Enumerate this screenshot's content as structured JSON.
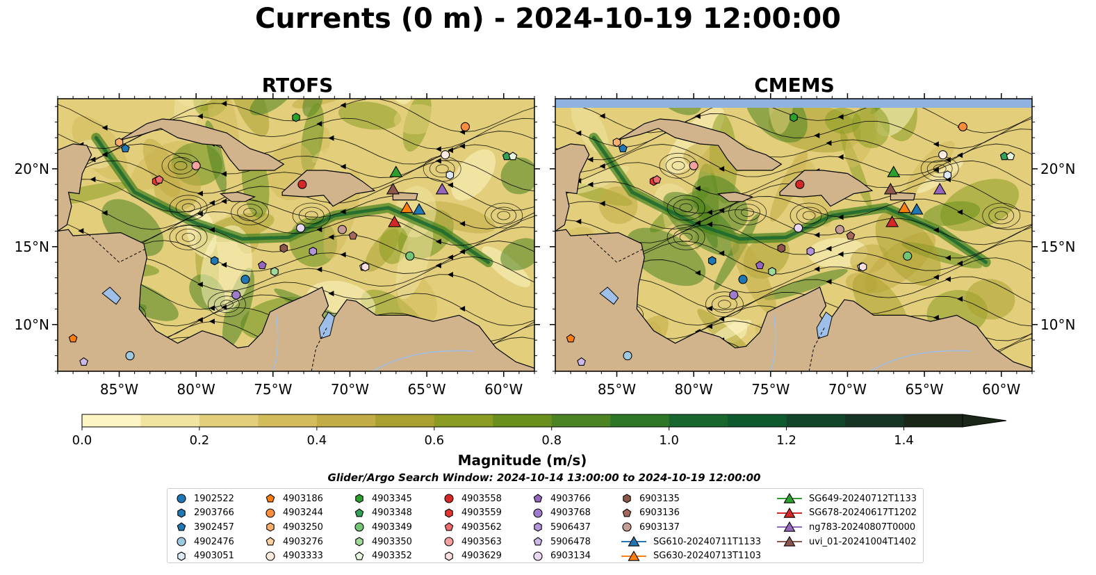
{
  "title": "Currents (0 m) - 2024-10-19 12:00:00",
  "panels": [
    {
      "id": "rtofs",
      "title": "RTOFS"
    },
    {
      "id": "cmems",
      "title": "CMEMS"
    }
  ],
  "map": {
    "lon_range": [
      -89,
      -58
    ],
    "lat_range": [
      7,
      24.5
    ],
    "lon_ticks": [
      "85°W",
      "80°W",
      "75°W",
      "70°W",
      "65°W",
      "60°W"
    ],
    "lat_ticks": [
      "10°N",
      "15°N",
      "20°N"
    ],
    "land_color": "#d2b48c",
    "lake_color": "#9ec0e8"
  },
  "colorbar": {
    "label": "Magnitude (m/s)",
    "ticks": [
      "0.0",
      "0.2",
      "0.4",
      "0.6",
      "0.8",
      "1.0",
      "1.2",
      "1.4"
    ],
    "range": [
      0.0,
      1.5
    ],
    "extend": "max",
    "colors": [
      "#fdf6c4",
      "#f1e3a0",
      "#e3cf7b",
      "#d3bc5c",
      "#c1ac46",
      "#a9a030",
      "#8b9c22",
      "#6a8f1c",
      "#4c8423",
      "#2f7728",
      "#17672e",
      "#0e5a2f",
      "#12462a",
      "#163524",
      "#1a2718"
    ]
  },
  "search_window": "Glider/Argo Search Window: 2024-10-14 13:00:00 to 2024-10-19 12:00:00",
  "legend": {
    "items": [
      {
        "label": "1902522",
        "marker": "circle",
        "color": "#1f77b4"
      },
      {
        "label": "2903766",
        "marker": "hexagon",
        "color": "#1f77b4"
      },
      {
        "label": "3902457",
        "marker": "pentagon",
        "color": "#1f77b4"
      },
      {
        "label": "4902476",
        "marker": "circle",
        "color": "#9ecae1"
      },
      {
        "label": "4903051",
        "marker": "hexagon",
        "color": "#deebf7"
      },
      {
        "label": "4903186",
        "marker": "pentagon",
        "color": "#ff7f0e"
      },
      {
        "label": "4903244",
        "marker": "circle",
        "color": "#fd8d3c"
      },
      {
        "label": "4903250",
        "marker": "hexagon",
        "color": "#fdae6b"
      },
      {
        "label": "4903276",
        "marker": "pentagon",
        "color": "#fdd0a2"
      },
      {
        "label": "4903333",
        "marker": "circle",
        "color": "#feedde"
      },
      {
        "label": "4903345",
        "marker": "hexagon",
        "color": "#2ca02c"
      },
      {
        "label": "4903348",
        "marker": "pentagon",
        "color": "#31a354"
      },
      {
        "label": "4903349",
        "marker": "circle",
        "color": "#74c476"
      },
      {
        "label": "4903350",
        "marker": "hexagon",
        "color": "#a1d99b"
      },
      {
        "label": "4903352",
        "marker": "pentagon",
        "color": "#e5f5e0"
      },
      {
        "label": "4903558",
        "marker": "circle",
        "color": "#d62728"
      },
      {
        "label": "4903559",
        "marker": "hexagon",
        "color": "#e6352f"
      },
      {
        "label": "4903562",
        "marker": "pentagon",
        "color": "#f16d6d"
      },
      {
        "label": "4903563",
        "marker": "circle",
        "color": "#f7a1a1"
      },
      {
        "label": "4903629",
        "marker": "hexagon",
        "color": "#fde0dd"
      },
      {
        "label": "4903766",
        "marker": "pentagon",
        "color": "#9467bd"
      },
      {
        "label": "4903768",
        "marker": "circle",
        "color": "#9e7cc9"
      },
      {
        "label": "5906437",
        "marker": "hexagon",
        "color": "#b294da"
      },
      {
        "label": "5906478",
        "marker": "pentagon",
        "color": "#cdb8ea"
      },
      {
        "label": "6903134",
        "marker": "circle",
        "color": "#e8d7f5"
      },
      {
        "label": "6903135",
        "marker": "hexagon",
        "color": "#8c564b"
      },
      {
        "label": "6903136",
        "marker": "pentagon",
        "color": "#a5685c"
      },
      {
        "label": "6903137",
        "marker": "circle",
        "color": "#c49c94"
      },
      {
        "label": "SG610-20240711T1133",
        "marker": "triangle",
        "color": "#1f77b4"
      },
      {
        "label": "SG630-20240713T1103",
        "marker": "triangle",
        "color": "#ff7f0e"
      },
      {
        "label": "SG649-20240712T1133",
        "marker": "triangle",
        "color": "#2ca02c"
      },
      {
        "label": "SG678-20240617T1202",
        "marker": "triangle",
        "color": "#d62728"
      },
      {
        "label": "ng783-20240807T0000",
        "marker": "triangle",
        "color": "#9467bd"
      },
      {
        "label": "uvi_01-20241004T1402",
        "marker": "triangle",
        "color": "#8c564b"
      }
    ]
  },
  "observations": [
    {
      "id": "1902522",
      "lon": -76.8,
      "lat": 12.9
    },
    {
      "id": "2903766",
      "lon": -78.8,
      "lat": 14.1
    },
    {
      "id": "3902457",
      "lon": -84.6,
      "lat": 21.3
    },
    {
      "id": "4902476",
      "lon": -84.3,
      "lat": 8.0
    },
    {
      "id": "4903051",
      "lon": -63.5,
      "lat": 19.6
    },
    {
      "id": "4903186",
      "lon": -88.0,
      "lat": 9.1
    },
    {
      "id": "4903244",
      "lon": -62.5,
      "lat": 22.7
    },
    {
      "id": "4903250",
      "lon": -85.0,
      "lat": 21.7
    },
    {
      "id": "4903276",
      "lon": -69.1,
      "lat": 13.7
    },
    {
      "id": "4903333",
      "lon": -63.8,
      "lat": 20.9
    },
    {
      "id": "4903345",
      "lon": -73.5,
      "lat": 23.3
    },
    {
      "id": "4903348",
      "lon": -59.8,
      "lat": 20.8
    },
    {
      "id": "4903349",
      "lon": -66.1,
      "lat": 14.4
    },
    {
      "id": "4903350",
      "lon": -74.9,
      "lat": 13.4
    },
    {
      "id": "4903352",
      "lon": -59.4,
      "lat": 20.8
    },
    {
      "id": "4903558",
      "lon": -73.1,
      "lat": 19.0
    },
    {
      "id": "4903559",
      "lon": -82.6,
      "lat": 19.2
    },
    {
      "id": "4903562",
      "lon": -82.4,
      "lat": 19.3
    },
    {
      "id": "4903563",
      "lon": -80.0,
      "lat": 20.2
    },
    {
      "id": "4903629",
      "lon": -69.0,
      "lat": 13.7
    },
    {
      "id": "4903766",
      "lon": -75.7,
      "lat": 13.8
    },
    {
      "id": "4903768",
      "lon": -77.4,
      "lat": 11.9
    },
    {
      "id": "5906437",
      "lon": -72.4,
      "lat": 14.7
    },
    {
      "id": "5906478",
      "lon": -87.3,
      "lat": 7.6
    },
    {
      "id": "6903134",
      "lon": -73.2,
      "lat": 16.2
    },
    {
      "id": "6903135",
      "lon": -74.3,
      "lat": 14.9
    },
    {
      "id": "6903136",
      "lon": -69.8,
      "lat": 15.7
    },
    {
      "id": "6903137",
      "lon": -70.5,
      "lat": 16.1
    },
    {
      "id": "SG610-20240711T1133",
      "lon": -65.5,
      "lat": 17.4
    },
    {
      "id": "SG630-20240713T1103",
      "lon": -66.3,
      "lat": 17.5
    },
    {
      "id": "SG649-20240712T1133",
      "lon": -67.0,
      "lat": 19.8
    },
    {
      "id": "SG678-20240617T1202",
      "lon": -67.1,
      "lat": 16.6
    },
    {
      "id": "ng783-20240807T0000",
      "lon": -64.0,
      "lat": 18.7
    },
    {
      "id": "uvi_01-20241004T1402",
      "lon": -67.2,
      "lat": 18.7
    }
  ]
}
